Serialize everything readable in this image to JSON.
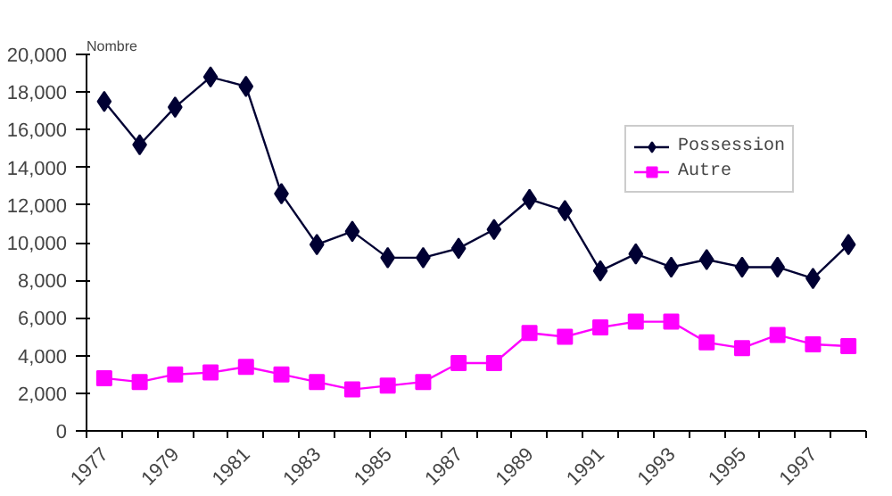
{
  "chart_data": {
    "type": "line",
    "ylabel": "Nombre",
    "categories": [
      "1977",
      null,
      "1979",
      null,
      "1981",
      null,
      "1983",
      null,
      "1985",
      null,
      "1987",
      null,
      "1989",
      null,
      "1991",
      null,
      "1993",
      null,
      "1995",
      null,
      "1997",
      null
    ],
    "series": [
      {
        "name": "Possession",
        "color": "#000033",
        "marker": "diamond",
        "values": [
          17500,
          15200,
          17200,
          18800,
          18300,
          12600,
          9900,
          10600,
          9200,
          9200,
          9700,
          10700,
          12300,
          11700,
          8500,
          9400,
          8700,
          9100,
          8700,
          8700,
          8100,
          9900
        ]
      },
      {
        "name": "Autre",
        "color": "#ff00ff",
        "marker": "square",
        "values": [
          2800,
          2600,
          3000,
          3100,
          3400,
          3000,
          2600,
          2200,
          2400,
          2600,
          3600,
          3600,
          5200,
          5000,
          5500,
          5800,
          5800,
          4700,
          4400,
          5100,
          4600,
          4500
        ]
      }
    ],
    "ylim": [
      0,
      20000
    ],
    "yticks": [
      {
        "value": 0,
        "label": "0"
      },
      {
        "value": 2000,
        "label": "2,000"
      },
      {
        "value": 4000,
        "label": "4,000"
      },
      {
        "value": 6000,
        "label": "6,000"
      },
      {
        "value": 8000,
        "label": "8,000"
      },
      {
        "value": 10000,
        "label": "10,000"
      },
      {
        "value": 12000,
        "label": "12,000"
      },
      {
        "value": 14000,
        "label": "14,000"
      },
      {
        "value": 16000,
        "label": "16,000"
      },
      {
        "value": 18000,
        "label": "18,000"
      },
      {
        "value": 20000,
        "label": "20,000"
      }
    ],
    "grid": false,
    "legend": "top right",
    "line_style": "solid"
  }
}
